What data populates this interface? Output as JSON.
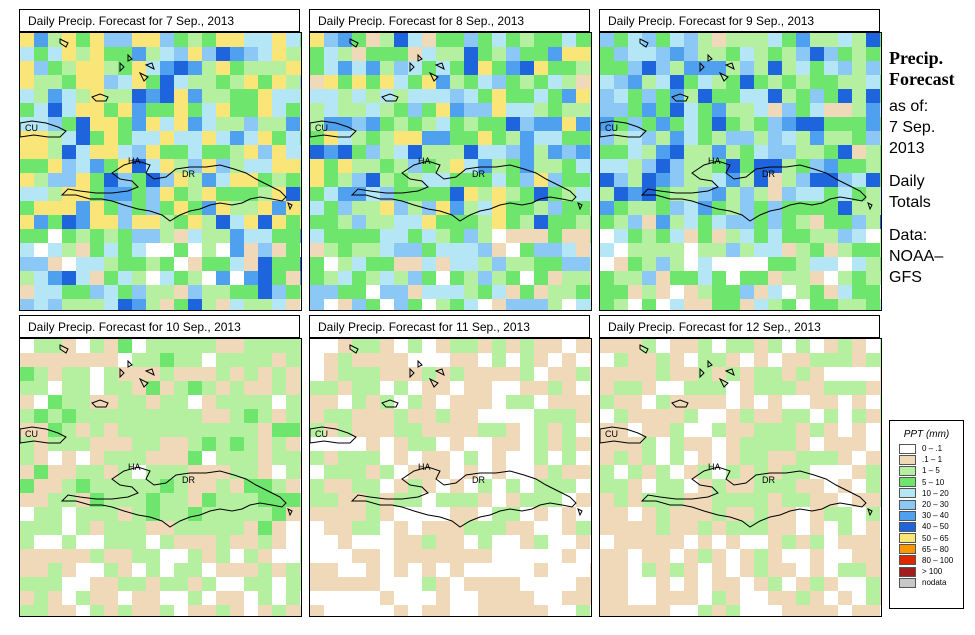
{
  "panels": [
    {
      "title": "Daily Precip. Forecast for  7 Sep., 2013",
      "seed": 7,
      "wet": 1.5
    },
    {
      "title": "Daily Precip. Forecast for  8 Sep., 2013",
      "seed": 8,
      "wet": 1.3
    },
    {
      "title": "Daily Precip. Forecast for  9 Sep., 2013",
      "seed": 9,
      "wet": 1.2
    },
    {
      "title": "Daily Precip. Forecast for  10 Sep., 2013",
      "seed": 10,
      "wet": 0.55
    },
    {
      "title": "Daily Precip. Forecast for  11 Sep., 2013",
      "seed": 11,
      "wet": 0.35
    },
    {
      "title": "Daily Precip. Forecast for  12 Sep., 2013",
      "seed": 12,
      "wet": 0.4
    }
  ],
  "map_labels": {
    "cuba": "CU",
    "haiti": "HA",
    "dr": "DR"
  },
  "side": {
    "heading_1": "Precip.",
    "heading_2": "Forecast",
    "as_of": "as of:",
    "date_1": "7 Sep.",
    "date_2": "2013",
    "daily": "Daily",
    "totals": "Totals",
    "data_label": "Data:",
    "source_1": "NOAA–",
    "source_2": "GFS"
  },
  "legend": {
    "title": "PPT (mm)",
    "items": [
      {
        "label": "0 – .1",
        "color": "#ffffff"
      },
      {
        "label": ".1 – 1",
        "color": "#f0d9b8"
      },
      {
        "label": "1 – 5",
        "color": "#b4f0a0"
      },
      {
        "label": "5 – 10",
        "color": "#6ee66e"
      },
      {
        "label": "10 – 20",
        "color": "#b4e6f5"
      },
      {
        "label": "20 – 30",
        "color": "#8cc8f5"
      },
      {
        "label": "30 – 40",
        "color": "#50a0f0"
      },
      {
        "label": "40 – 50",
        "color": "#1e64dc"
      },
      {
        "label": "50 – 65",
        "color": "#fae678"
      },
      {
        "label": "65 – 80",
        "color": "#fa9600"
      },
      {
        "label": "80 – 100",
        "color": "#dc2800"
      },
      {
        "label": "> 100",
        "color": "#a01e1e"
      },
      {
        "label": "nodata",
        "color": "#c8c8c8"
      }
    ]
  }
}
